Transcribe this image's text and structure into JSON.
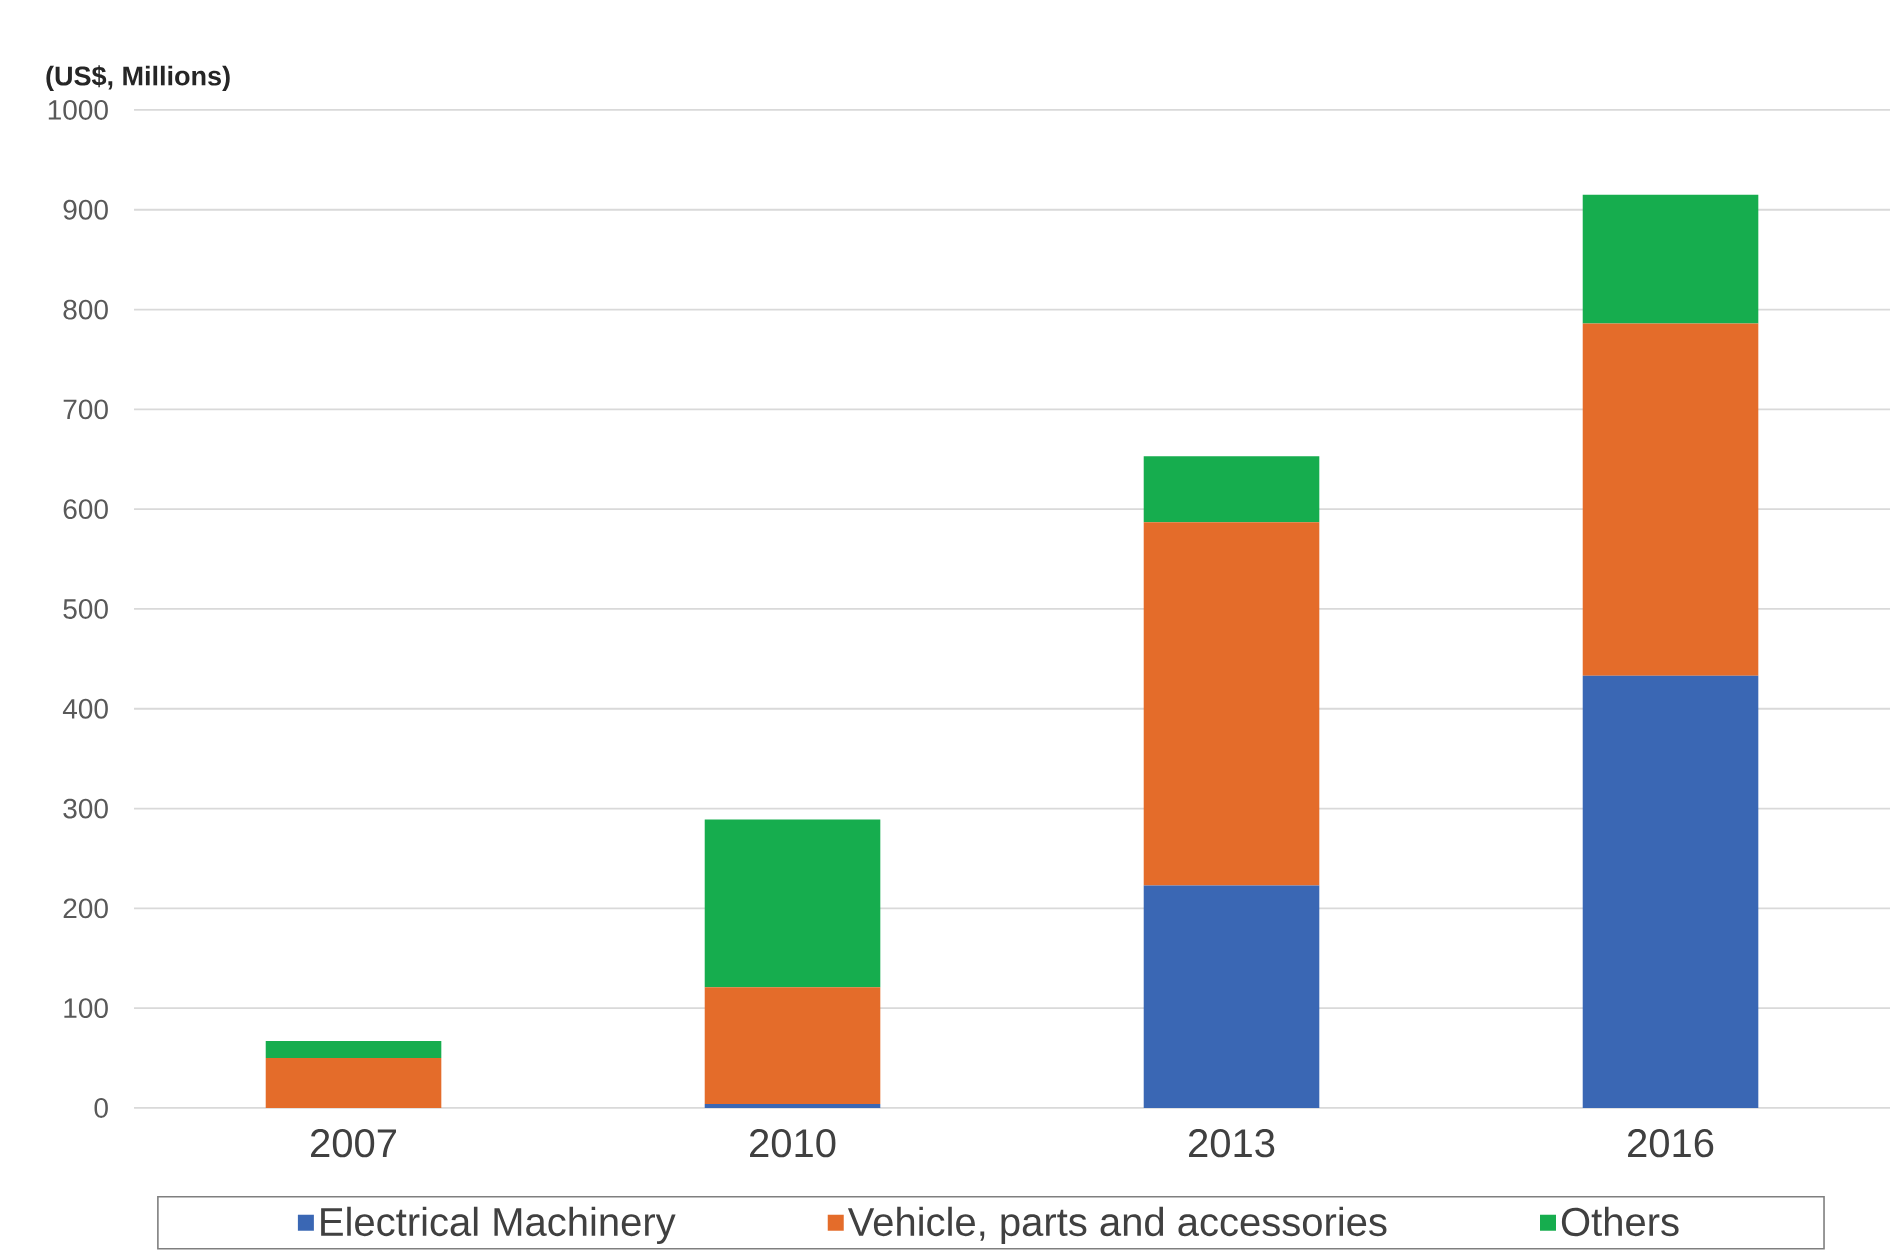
{
  "chart_data": {
    "type": "bar",
    "ylabel": "(US$, Millions)",
    "categories": [
      "2007",
      "2010",
      "2013",
      "2016"
    ],
    "stacked": true,
    "series": [
      {
        "name": "Electrical Machinery",
        "color": "#3a67b4",
        "values": [
          0,
          4,
          223,
          433
        ]
      },
      {
        "name": "Vehicle, parts and accessories",
        "color": "#e46c2a",
        "values": [
          50,
          117,
          364,
          353
        ]
      },
      {
        "name": "Others",
        "color": "#16ad4e",
        "values": [
          17,
          168,
          66,
          129
        ]
      }
    ],
    "ylim": [
      0,
      1000
    ],
    "yticks": [
      0,
      100,
      200,
      300,
      400,
      500,
      600,
      700,
      800,
      900,
      1000
    ],
    "grid": "y",
    "legend": "bottom"
  }
}
